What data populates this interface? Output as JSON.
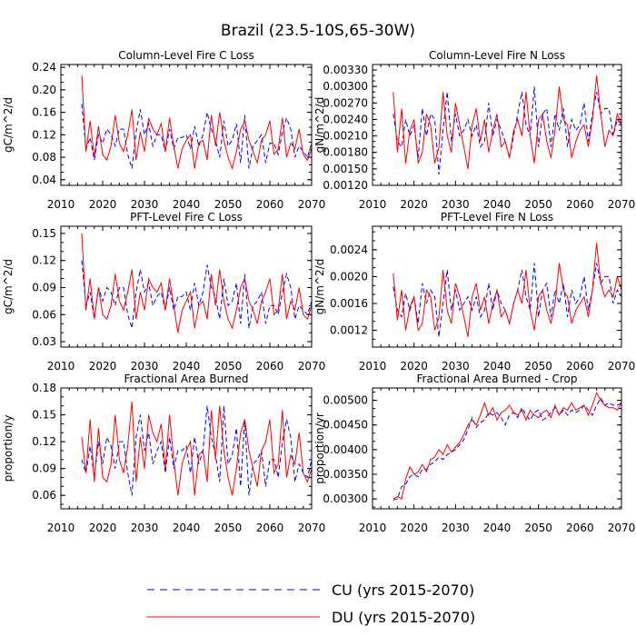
{
  "figure": {
    "title": "Brazil (23.5-10S,65-30W)"
  },
  "legend": {
    "entries": [
      {
        "label": "CU (yrs 2015-2070)",
        "color": "#0000ff",
        "style": "dashed"
      },
      {
        "label": "DU (yrs 2015-2070)",
        "color": "#ff0000",
        "style": "solid"
      }
    ]
  },
  "chart_data": [
    {
      "type": "line",
      "title": "Column-Level Fire C Loss",
      "xlabel": "",
      "ylabel": "gC/m^2/d",
      "xlim": [
        2010,
        2070
      ],
      "ylim": [
        0.03,
        0.245
      ],
      "xticks": [
        "2010",
        "2020",
        "2030",
        "2040",
        "2050",
        "2060",
        "2070"
      ],
      "yticks": [
        "0.04",
        "0.08",
        "0.12",
        "0.16",
        "0.20",
        "0.24"
      ],
      "x_start": 2015,
      "series": [
        {
          "name": "CU (yrs 2015-2070)",
          "color": "#0000ff",
          "style": "dashed",
          "values": [
            0.175,
            0.095,
            0.115,
            0.075,
            0.12,
            0.105,
            0.13,
            0.12,
            0.1,
            0.13,
            0.13,
            0.085,
            0.06,
            0.125,
            0.165,
            0.12,
            0.14,
            0.1,
            0.12,
            0.12,
            0.09,
            0.13,
            0.095,
            0.115,
            0.115,
            0.12,
            0.095,
            0.135,
            0.1,
            0.12,
            0.16,
            0.13,
            0.11,
            0.08,
            0.145,
            0.1,
            0.11,
            0.14,
            0.07,
            0.155,
            0.06,
            0.1,
            0.11,
            0.12,
            0.07,
            0.105,
            0.105,
            0.085,
            0.125,
            0.15,
            0.13,
            0.08,
            0.1,
            0.09,
            0.08,
            0.105
          ]
        },
        {
          "name": "DU (yrs 2015-2070)",
          "color": "#ff0000",
          "style": "solid",
          "values": [
            0.225,
            0.09,
            0.145,
            0.08,
            0.135,
            0.085,
            0.075,
            0.1,
            0.155,
            0.105,
            0.09,
            0.12,
            0.165,
            0.075,
            0.125,
            0.09,
            0.15,
            0.13,
            0.12,
            0.14,
            0.09,
            0.15,
            0.1,
            0.06,
            0.095,
            0.11,
            0.12,
            0.06,
            0.105,
            0.11,
            0.075,
            0.155,
            0.1,
            0.16,
            0.11,
            0.08,
            0.06,
            0.09,
            0.13,
            0.145,
            0.11,
            0.09,
            0.07,
            0.11,
            0.12,
            0.145,
            0.085,
            0.095,
            0.15,
            0.08,
            0.105,
            0.095,
            0.13,
            0.085,
            0.075,
            0.095
          ]
        }
      ]
    },
    {
      "type": "line",
      "title": "Column-Level Fire N Loss",
      "xlabel": "",
      "ylabel": "gN/m^2/d",
      "xlim": [
        2010,
        2070
      ],
      "ylim": [
        0.0012,
        0.0034
      ],
      "xticks": [
        "2010",
        "2020",
        "2030",
        "2040",
        "2050",
        "2060",
        "2070"
      ],
      "yticks": [
        "0.00120",
        "0.00150",
        "0.00180",
        "0.00210",
        "0.00240",
        "0.00270",
        "0.00300",
        "0.00330"
      ],
      "x_start": 2015,
      "series": [
        {
          "name": "CU (yrs 2015-2070)",
          "color": "#0000ff",
          "style": "dashed",
          "values": [
            0.0025,
            0.002,
            0.0019,
            0.0024,
            0.0021,
            0.0023,
            0.0017,
            0.0026,
            0.0021,
            0.0025,
            0.0024,
            0.0014,
            0.0022,
            0.0029,
            0.002,
            0.0025,
            0.0021,
            0.0022,
            0.0024,
            0.0021,
            0.0023,
            0.0019,
            0.002,
            0.0027,
            0.0021,
            0.0024,
            0.0022,
            0.002,
            0.0017,
            0.0021,
            0.0025,
            0.0029,
            0.0023,
            0.0021,
            0.003,
            0.0019,
            0.0025,
            0.0026,
            0.0019,
            0.0025,
            0.0022,
            0.0026,
            0.0019,
            0.0024,
            0.0022,
            0.0023,
            0.0027,
            0.002,
            0.0025,
            0.0029,
            0.0025,
            0.0026,
            0.0026,
            0.0021,
            0.0024,
            0.0023
          ]
        },
        {
          "name": "DU (yrs 2015-2070)",
          "color": "#ff0000",
          "style": "solid",
          "values": [
            0.0029,
            0.0018,
            0.0026,
            0.0016,
            0.0022,
            0.0024,
            0.0016,
            0.0018,
            0.0025,
            0.0023,
            0.0016,
            0.0019,
            0.0029,
            0.0021,
            0.0018,
            0.0027,
            0.0023,
            0.0019,
            0.0015,
            0.0023,
            0.0026,
            0.002,
            0.0024,
            0.0018,
            0.0022,
            0.0025,
            0.0019,
            0.002,
            0.0017,
            0.0022,
            0.0024,
            0.0021,
            0.0029,
            0.0021,
            0.0016,
            0.0024,
            0.0025,
            0.002,
            0.0017,
            0.0022,
            0.003,
            0.0024,
            0.0023,
            0.0017,
            0.002,
            0.0022,
            0.0023,
            0.0019,
            0.0024,
            0.0032,
            0.0025,
            0.0019,
            0.0022,
            0.0021,
            0.0025,
            0.0023
          ]
        }
      ]
    },
    {
      "type": "line",
      "title": "PFT-Level Fire C Loss",
      "xlabel": "",
      "ylabel": "gC/m^2/d",
      "xlim": [
        2010,
        2070
      ],
      "ylim": [
        0.024,
        0.158
      ],
      "xticks": [
        "2010",
        "2020",
        "2030",
        "2040",
        "2050",
        "2060",
        "2070"
      ],
      "yticks": [
        "0.03",
        "0.06",
        "0.09",
        "0.12",
        "0.15"
      ],
      "x_start": 2015,
      "series": [
        {
          "name": "CU (yrs 2015-2070)",
          "color": "#0000ff",
          "style": "dashed",
          "values": [
            0.12,
            0.07,
            0.085,
            0.055,
            0.09,
            0.075,
            0.09,
            0.085,
            0.07,
            0.09,
            0.09,
            0.06,
            0.045,
            0.085,
            0.11,
            0.085,
            0.095,
            0.07,
            0.08,
            0.085,
            0.065,
            0.09,
            0.065,
            0.08,
            0.08,
            0.085,
            0.065,
            0.095,
            0.07,
            0.085,
            0.115,
            0.09,
            0.08,
            0.055,
            0.1,
            0.07,
            0.075,
            0.095,
            0.05,
            0.105,
            0.045,
            0.07,
            0.075,
            0.085,
            0.05,
            0.07,
            0.07,
            0.06,
            0.085,
            0.105,
            0.09,
            0.055,
            0.07,
            0.065,
            0.06,
            0.075
          ]
        },
        {
          "name": "DU (yrs 2015-2070)",
          "color": "#ff0000",
          "style": "solid",
          "values": [
            0.15,
            0.065,
            0.1,
            0.055,
            0.09,
            0.06,
            0.055,
            0.07,
            0.105,
            0.075,
            0.065,
            0.085,
            0.11,
            0.055,
            0.085,
            0.065,
            0.1,
            0.09,
            0.085,
            0.095,
            0.065,
            0.1,
            0.07,
            0.04,
            0.065,
            0.075,
            0.085,
            0.045,
            0.07,
            0.075,
            0.055,
            0.105,
            0.07,
            0.11,
            0.075,
            0.055,
            0.045,
            0.065,
            0.09,
            0.1,
            0.075,
            0.065,
            0.05,
            0.075,
            0.085,
            0.1,
            0.06,
            0.065,
            0.105,
            0.055,
            0.075,
            0.065,
            0.09,
            0.06,
            0.055,
            0.07
          ]
        }
      ]
    },
    {
      "type": "line",
      "title": "PFT-Level Fire N Loss",
      "xlabel": "",
      "ylabel": "gN/m^2/d",
      "xlim": [
        2010,
        2070
      ],
      "ylim": [
        0.00095,
        0.00275
      ],
      "xticks": [
        "2010",
        "2020",
        "2030",
        "2040",
        "2050",
        "2060",
        "2070"
      ],
      "yticks": [
        "0.0012",
        "0.0016",
        "0.0020",
        "0.0024"
      ],
      "x_start": 2015,
      "series": [
        {
          "name": "CU (yrs 2015-2070)",
          "color": "#0000ff",
          "style": "dashed",
          "values": [
            0.00185,
            0.0015,
            0.0014,
            0.00175,
            0.0015,
            0.0017,
            0.0013,
            0.0019,
            0.0016,
            0.0018,
            0.0017,
            0.0011,
            0.0016,
            0.0021,
            0.0015,
            0.0018,
            0.0015,
            0.0016,
            0.0017,
            0.0015,
            0.0017,
            0.0014,
            0.0015,
            0.0019,
            0.0015,
            0.0018,
            0.0016,
            0.0015,
            0.0013,
            0.0016,
            0.0018,
            0.0021,
            0.0017,
            0.0015,
            0.0022,
            0.0014,
            0.0018,
            0.0019,
            0.0014,
            0.0018,
            0.0016,
            0.0019,
            0.0014,
            0.0018,
            0.0016,
            0.0017,
            0.002,
            0.0015,
            0.0018,
            0.0022,
            0.0019,
            0.002,
            0.002,
            0.0016,
            0.0018,
            0.0017
          ]
        },
        {
          "name": "DU (yrs 2015-2070)",
          "color": "#ff0000",
          "style": "solid",
          "values": [
            0.00205,
            0.00135,
            0.0018,
            0.0012,
            0.00155,
            0.0017,
            0.0012,
            0.0013,
            0.0018,
            0.0017,
            0.0012,
            0.0014,
            0.0021,
            0.0015,
            0.0013,
            0.0019,
            0.0017,
            0.0014,
            0.0011,
            0.0017,
            0.0019,
            0.0015,
            0.0017,
            0.0013,
            0.0016,
            0.0018,
            0.0014,
            0.0015,
            0.0013,
            0.0016,
            0.0018,
            0.0016,
            0.0021,
            0.0015,
            0.0012,
            0.0017,
            0.0018,
            0.0015,
            0.0013,
            0.0016,
            0.0022,
            0.0018,
            0.0017,
            0.0013,
            0.0015,
            0.0016,
            0.0017,
            0.0014,
            0.0018,
            0.0025,
            0.0019,
            0.0017,
            0.0018,
            0.0017,
            0.002,
            0.0018
          ]
        }
      ]
    },
    {
      "type": "line",
      "title": "Fractional Area Burned",
      "xlabel": "",
      "ylabel": "proportion/y",
      "xlim": [
        2010,
        2070
      ],
      "ylim": [
        0.045,
        0.18
      ],
      "xticks": [
        "2010",
        "2020",
        "2030",
        "2040",
        "2050",
        "2060",
        "2070"
      ],
      "yticks": [
        "0.06",
        "0.09",
        "0.12",
        "0.15",
        "0.18"
      ],
      "x_start": 2015,
      "series": [
        {
          "name": "CU (yrs 2015-2070)",
          "color": "#0000ff",
          "style": "dashed",
          "values": [
            0.1,
            0.085,
            0.115,
            0.08,
            0.12,
            0.095,
            0.125,
            0.115,
            0.09,
            0.12,
            0.12,
            0.085,
            0.06,
            0.125,
            0.15,
            0.11,
            0.13,
            0.095,
            0.11,
            0.12,
            0.085,
            0.125,
            0.09,
            0.11,
            0.11,
            0.115,
            0.085,
            0.125,
            0.095,
            0.11,
            0.16,
            0.125,
            0.105,
            0.075,
            0.16,
            0.095,
            0.105,
            0.135,
            0.07,
            0.145,
            0.06,
            0.095,
            0.1,
            0.11,
            0.07,
            0.1,
            0.1,
            0.08,
            0.12,
            0.145,
            0.125,
            0.075,
            0.095,
            0.085,
            0.08,
            0.1
          ]
        },
        {
          "name": "DU (yrs 2015-2070)",
          "color": "#ff0000",
          "style": "solid",
          "values": [
            0.125,
            0.085,
            0.145,
            0.075,
            0.135,
            0.08,
            0.075,
            0.095,
            0.15,
            0.1,
            0.085,
            0.115,
            0.165,
            0.075,
            0.125,
            0.09,
            0.15,
            0.13,
            0.12,
            0.14,
            0.09,
            0.15,
            0.1,
            0.06,
            0.095,
            0.11,
            0.12,
            0.06,
            0.105,
            0.11,
            0.075,
            0.155,
            0.1,
            0.16,
            0.11,
            0.08,
            0.06,
            0.09,
            0.13,
            0.145,
            0.11,
            0.09,
            0.07,
            0.11,
            0.12,
            0.145,
            0.085,
            0.095,
            0.155,
            0.08,
            0.105,
            0.095,
            0.13,
            0.085,
            0.075,
            0.09
          ]
        }
      ]
    },
    {
      "type": "line",
      "title": "Fractional Area Burned - Crop",
      "xlabel": "",
      "ylabel": "proportion/yr",
      "xlim": [
        2010,
        2070
      ],
      "ylim": [
        0.0028,
        0.00525
      ],
      "xticks": [
        "2010",
        "2020",
        "2030",
        "2040",
        "2050",
        "2060",
        "2070"
      ],
      "yticks": [
        "0.00300",
        "0.00350",
        "0.00400",
        "0.00450",
        "0.00500"
      ],
      "x_start": 2015,
      "series": [
        {
          "name": "CU (yrs 2015-2070)",
          "color": "#0000ff",
          "style": "dashed",
          "values": [
            0.00298,
            0.003,
            0.00325,
            0.0033,
            0.00345,
            0.0035,
            0.00345,
            0.0036,
            0.0036,
            0.0037,
            0.00375,
            0.00385,
            0.0038,
            0.0039,
            0.00395,
            0.004,
            0.0041,
            0.0042,
            0.0044,
            0.00465,
            0.00445,
            0.00455,
            0.0046,
            0.00475,
            0.0047,
            0.00475,
            0.00465,
            0.0045,
            0.0047,
            0.00475,
            0.00465,
            0.00485,
            0.0047,
            0.0046,
            0.00475,
            0.0048,
            0.0046,
            0.00465,
            0.00475,
            0.00485,
            0.0047,
            0.0048,
            0.0047,
            0.0048,
            0.00475,
            0.0048,
            0.0049,
            0.0048,
            0.0047,
            0.0049,
            0.00505,
            0.0049,
            0.00495,
            0.0049,
            0.0049,
            0.00495
          ]
        },
        {
          "name": "DU (yrs 2015-2070)",
          "color": "#ff0000",
          "style": "solid",
          "values": [
            0.003,
            0.00305,
            0.003,
            0.0034,
            0.00365,
            0.0035,
            0.00355,
            0.0037,
            0.00355,
            0.0038,
            0.00385,
            0.004,
            0.0039,
            0.0041,
            0.00395,
            0.00405,
            0.00415,
            0.0043,
            0.0045,
            0.0046,
            0.0045,
            0.0047,
            0.00495,
            0.0047,
            0.00485,
            0.0046,
            0.00475,
            0.0048,
            0.0049,
            0.00475,
            0.0047,
            0.0048,
            0.0046,
            0.0048,
            0.0047,
            0.00465,
            0.00475,
            0.0048,
            0.00465,
            0.0049,
            0.0047,
            0.00485,
            0.0048,
            0.00495,
            0.0048,
            0.00485,
            0.0049,
            0.0047,
            0.0049,
            0.00515,
            0.005,
            0.0049,
            0.00485,
            0.00485,
            0.0048,
            0.00495
          ]
        }
      ]
    }
  ]
}
